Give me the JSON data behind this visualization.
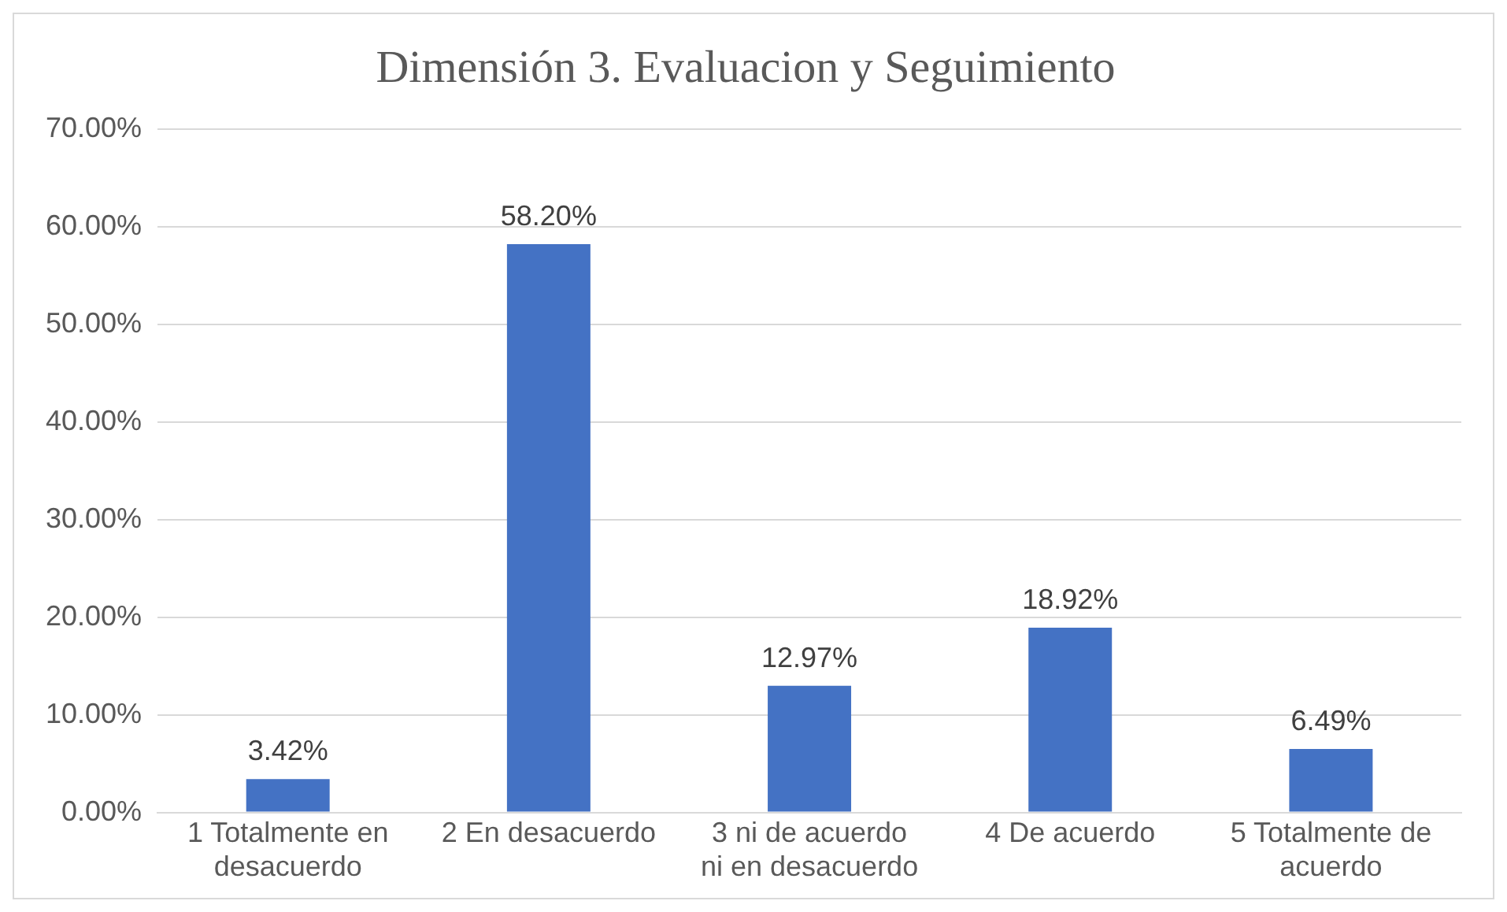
{
  "chart_data": {
    "type": "bar",
    "title": "Dimensión 3. Evaluacion y Seguimiento",
    "categories": [
      "1 Totalmente en desacuerdo",
      "2 En desacuerdo",
      "3 ni de acuerdo ni en desacuerdo",
      "4 De acuerdo",
      "5 Totalmente de acuerdo"
    ],
    "values": [
      3.42,
      58.2,
      12.97,
      18.92,
      6.49
    ],
    "value_labels": [
      "3.42%",
      "58.20%",
      "12.97%",
      "18.92%",
      "6.49%"
    ],
    "color": "#4472c4",
    "ylim": [
      0,
      70
    ],
    "yticks": [
      {
        "value": 0,
        "label": "0.00%"
      },
      {
        "value": 10,
        "label": "10.00%"
      },
      {
        "value": 20,
        "label": "20.00%"
      },
      {
        "value": 30,
        "label": "30.00%"
      },
      {
        "value": 40,
        "label": "40.00%"
      },
      {
        "value": 50,
        "label": "50.00%"
      },
      {
        "value": 60,
        "label": "60.00%"
      },
      {
        "value": 70,
        "label": "70.00%"
      }
    ],
    "grid": "y",
    "legend": false
  }
}
